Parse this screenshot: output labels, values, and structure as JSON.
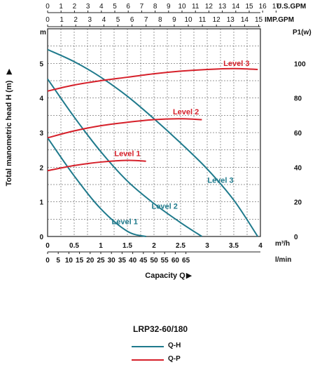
{
  "chart_data": {
    "type": "line",
    "title": "",
    "model": "LRP32-60/180",
    "xlabel": "Capacity Q",
    "ylabel_left": "Total manometric head H (m)",
    "ylabel_left_unit": "m",
    "ylabel_right": "P1(w)",
    "x_axes": {
      "m3h": {
        "unit": "m³/h",
        "ticks": [
          "0",
          "0.5",
          "1",
          "1.5",
          "2",
          "2.5",
          "3",
          "3.5",
          "4"
        ],
        "range": [
          0,
          4.1
        ]
      },
      "lmin": {
        "unit": "l/min",
        "ticks": [
          "0",
          "5",
          "10",
          "15",
          "20",
          "25",
          "30",
          "35",
          "40",
          "45",
          "50",
          "55",
          "60",
          "65"
        ]
      },
      "us_gpm": {
        "unit": "U.S.GPM",
        "ticks": [
          "0",
          "1",
          "2",
          "3",
          "4",
          "5",
          "6",
          "7",
          "8",
          "9",
          "10",
          "11",
          "12",
          "13",
          "14",
          "15",
          "16",
          "17"
        ]
      },
      "imp_gpm": {
        "unit": "IMP.GPM",
        "ticks": [
          "0",
          "1",
          "2",
          "3",
          "4",
          "5",
          "6",
          "7",
          "8",
          "9",
          "10",
          "11",
          "12",
          "13",
          "14",
          "15"
        ]
      }
    },
    "y_left": {
      "ticks": [
        "0",
        "1",
        "2",
        "3",
        "4",
        "5"
      ],
      "range": [
        0,
        6
      ]
    },
    "y_right": {
      "ticks": [
        "0",
        "20",
        "40",
        "60",
        "80",
        "100"
      ],
      "range": [
        0,
        120
      ]
    },
    "grid": true,
    "series": [
      {
        "name": "Level 1",
        "kind": "Q-H",
        "color": "#1f7a8c",
        "x": [
          0,
          0.5,
          1.0,
          1.5,
          1.85
        ],
        "y": [
          2.85,
          1.75,
          0.8,
          0.15,
          0
        ]
      },
      {
        "name": "Level 2",
        "kind": "Q-H",
        "color": "#1f7a8c",
        "x": [
          0,
          0.5,
          1.0,
          1.5,
          2.0,
          2.5,
          2.9
        ],
        "y": [
          4.55,
          3.45,
          2.45,
          1.6,
          0.95,
          0.4,
          0
        ]
      },
      {
        "name": "Level 3",
        "kind": "Q-H",
        "color": "#1f7a8c",
        "x": [
          0,
          0.5,
          1.0,
          1.5,
          2.0,
          2.5,
          3.0,
          3.5,
          3.95
        ],
        "y": [
          5.4,
          5.05,
          4.6,
          4.05,
          3.4,
          2.7,
          1.95,
          1.05,
          0
        ]
      },
      {
        "name": "Level 1",
        "kind": "Q-P",
        "color": "#d6202a",
        "x": [
          0,
          0.5,
          1.0,
          1.5,
          1.85
        ],
        "y": [
          38,
          41,
          43,
          44,
          43.5
        ]
      },
      {
        "name": "Level 2",
        "kind": "Q-P",
        "color": "#d6202a",
        "x": [
          0,
          0.5,
          1.0,
          1.5,
          2.0,
          2.5,
          2.9
        ],
        "y": [
          57,
          61,
          64,
          66,
          67.5,
          68,
          67.5
        ]
      },
      {
        "name": "Level 3",
        "kind": "Q-P",
        "color": "#d6202a",
        "x": [
          0,
          0.5,
          1.0,
          1.5,
          2.0,
          2.5,
          3.0,
          3.5,
          3.95
        ],
        "y": [
          84,
          87.5,
          90,
          92,
          94,
          95.5,
          96.5,
          97,
          96.5
        ]
      }
    ],
    "curve_labels": [
      {
        "text": "Level 3",
        "kind": "Q-P",
        "at_x": 3.55,
        "at_y": 98.5
      },
      {
        "text": "Level 2",
        "kind": "Q-P",
        "at_x": 2.6,
        "at_y": 70.5
      },
      {
        "text": "Level 1",
        "kind": "Q-P",
        "at_x": 1.5,
        "at_y": 46.5
      },
      {
        "text": "Level 3",
        "kind": "Q-H",
        "at_x": 3.25,
        "at_y": 1.55
      },
      {
        "text": "Level 2",
        "kind": "Q-H",
        "at_x": 2.2,
        "at_y": 0.8
      },
      {
        "text": "Level 1",
        "kind": "Q-H",
        "at_x": 1.45,
        "at_y": 0.35
      }
    ],
    "legend": [
      {
        "label": "Q-H",
        "color": "#1f7a8c"
      },
      {
        "label": "Q-P",
        "color": "#d6202a"
      }
    ],
    "legend_position": "bottom-center"
  }
}
